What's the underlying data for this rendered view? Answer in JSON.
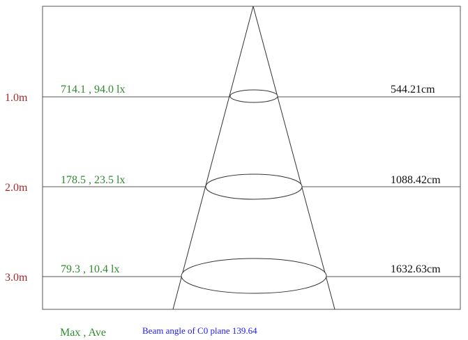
{
  "colors": {
    "distance": "#a52a2a",
    "illuminance": "#2e8b2e",
    "diameter": "#111111",
    "beam_note": "#1a1aff",
    "lines": "#555555"
  },
  "rows": [
    {
      "distance": "1.0m",
      "illuminance": "714.1 , 94.0 lx",
      "diameter": "544.21cm"
    },
    {
      "distance": "2.0m",
      "illuminance": "178.5 , 23.5 lx",
      "diameter": "1088.42cm"
    },
    {
      "distance": "3.0m",
      "illuminance": "79.3 , 10.4 lx",
      "diameter": "1632.63cm"
    }
  ],
  "legend": "Max , Ave",
  "beam_note": "Beam angle of C0 plane 139.64"
}
